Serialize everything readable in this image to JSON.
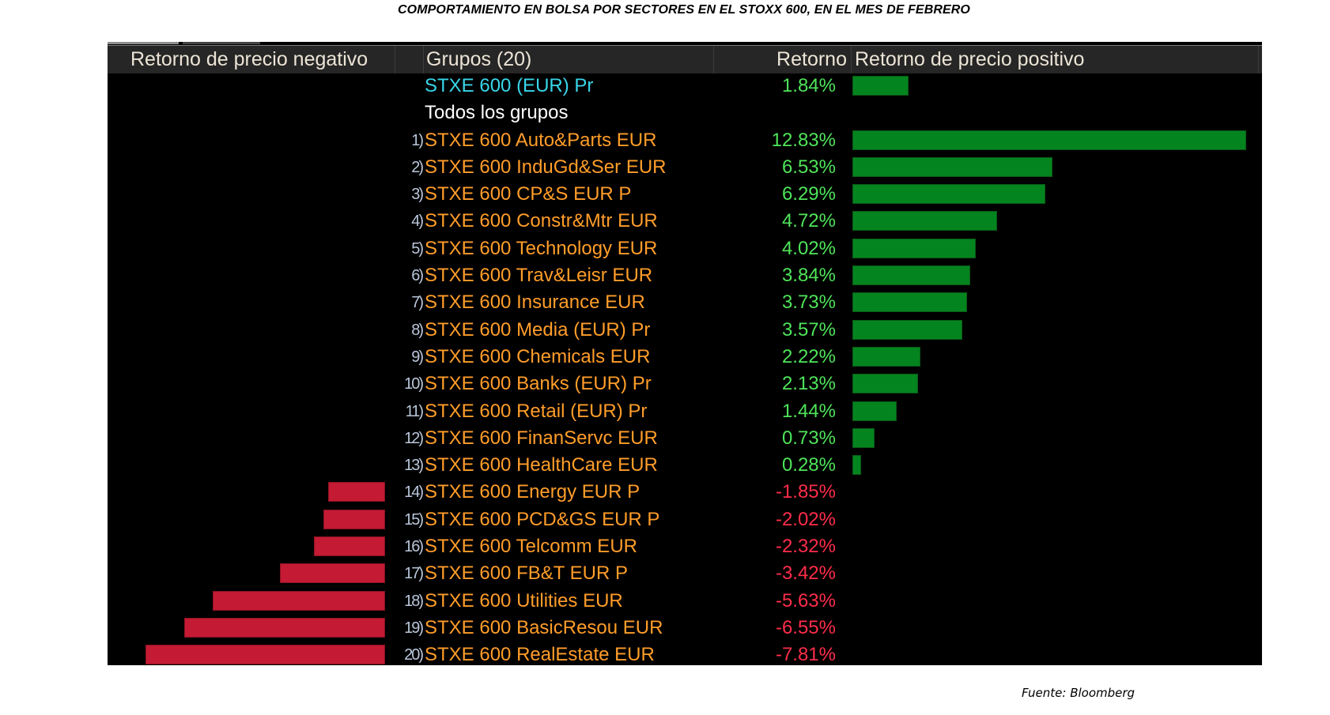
{
  "title": "COMPORTAMIENTO EN BOLSA POR SECTORES EN EL STOXX 600, EN EL MES DE FEBRERO",
  "footer": "Fuente: Bloomberg",
  "colors": {
    "positive_bar": "#04841f",
    "negative_bar": "#c41a34",
    "positive_text": "#4fe45a",
    "negative_text": "#ff2d4a",
    "group_text": "#ff9d2a",
    "index_text": "#38d6ea"
  },
  "header": {
    "neg_label": "Retorno de precio negativo",
    "groups_label": "Grupos (20)",
    "return_label": "Retorno",
    "pos_label": "Retorno de precio positivo"
  },
  "benchmark": {
    "name": "STXE 600 (EUR) Pr",
    "return_text": "1.84%",
    "value": 1.84
  },
  "section_label": "Todos los grupos",
  "chart_data": {
    "type": "bar",
    "title": "COMPORTAMIENTO EN BOLSA POR SECTORES EN EL STOXX 600, EN EL MES DE FEBRERO",
    "xlabel": "Retorno",
    "ylabel": "Grupos (20)",
    "unit": "%",
    "orientation": "horizontal",
    "categories": [
      "STXE 600 Auto&Parts EUR",
      "STXE 600 InduGd&Ser EUR",
      "STXE 600 CP&S EUR P",
      "STXE 600 Constr&Mtr EUR",
      "STXE 600 Technology EUR",
      "STXE 600 Trav&Leisr EUR",
      "STXE 600 Insurance EUR",
      "STXE 600 Media (EUR) Pr",
      "STXE 600 Chemicals EUR",
      "STXE 600 Banks (EUR) Pr",
      "STXE 600 Retail (EUR) Pr",
      "STXE 600 FinanServc EUR",
      "STXE 600 HealthCare EUR",
      "STXE 600 Energy EUR P",
      "STXE 600 PCD&GS EUR P",
      "STXE 600 Telcomm EUR",
      "STXE 600 FB&T EUR P",
      "STXE 600 Utilities EUR",
      "STXE 600 BasicResou EUR",
      "STXE 600 RealEstate EUR"
    ],
    "values": [
      12.83,
      6.53,
      6.29,
      4.72,
      4.02,
      3.84,
      3.73,
      3.57,
      2.22,
      2.13,
      1.44,
      0.73,
      0.28,
      -1.85,
      -2.02,
      -2.32,
      -3.42,
      -5.63,
      -6.55,
      -7.81
    ],
    "labels": [
      "12.83%",
      "6.53%",
      "6.29%",
      "4.72%",
      "4.02%",
      "3.84%",
      "3.73%",
      "3.57%",
      "2.22%",
      "2.13%",
      "1.44%",
      "0.73%",
      "0.28%",
      "-1.85%",
      "-2.02%",
      "-2.32%",
      "-3.42%",
      "-5.63%",
      "-6.55%",
      "-7.81%"
    ],
    "ranks": [
      "1)",
      "2)",
      "3)",
      "4)",
      "5)",
      "6)",
      "7)",
      "8)",
      "9)",
      "10)",
      "11)",
      "12)",
      "13)",
      "14)",
      "15)",
      "16)",
      "17)",
      "18)",
      "19)",
      "20)"
    ],
    "xlim": [
      -7.81,
      12.83
    ]
  }
}
